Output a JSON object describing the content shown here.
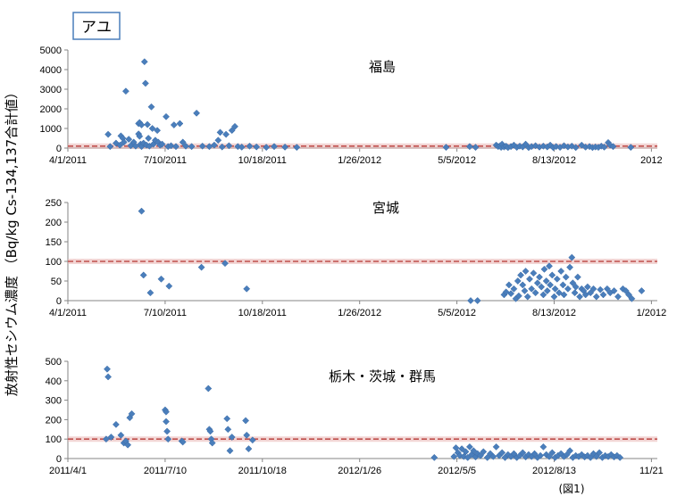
{
  "species_label": "アユ",
  "y_axis_label": "放射性セシウム濃度 （Bq/kg Cs-134,137合計値）",
  "figure_note": "(図1)",
  "colors": {
    "marker": "#4a7ebb",
    "limit_line": "#c0504d",
    "axis": "#868686"
  },
  "chart_data": [
    {
      "type": "scatter",
      "title": "福島",
      "ylim": [
        0,
        5000
      ],
      "yticks": [
        0,
        1000,
        2000,
        3000,
        4000,
        5000
      ],
      "xlim": [
        "2011-04-01",
        "2012-11-21"
      ],
      "xtick_labels": [
        "4/1/2011",
        "7/10/2011",
        "10/18/2011",
        "1/26/2012",
        "5/5/2012",
        "8/13/2012",
        "2012"
      ],
      "limit_value": 100,
      "points": [
        [
          "2011-05-12",
          700
        ],
        [
          "2011-05-14",
          80
        ],
        [
          "2011-05-20",
          250
        ],
        [
          "2011-05-24",
          150
        ],
        [
          "2011-05-25",
          620
        ],
        [
          "2011-05-27",
          500
        ],
        [
          "2011-05-28",
          300
        ],
        [
          "2011-05-30",
          2900
        ],
        [
          "2011-06-02",
          450
        ],
        [
          "2011-06-04",
          120
        ],
        [
          "2011-06-07",
          300
        ],
        [
          "2011-06-09",
          100
        ],
        [
          "2011-06-12",
          1250
        ],
        [
          "2011-06-12",
          720
        ],
        [
          "2011-06-13",
          1300
        ],
        [
          "2011-06-13",
          600
        ],
        [
          "2011-06-14",
          200
        ],
        [
          "2011-06-15",
          1180
        ],
        [
          "2011-06-15",
          80
        ],
        [
          "2011-06-17",
          250
        ],
        [
          "2011-06-18",
          4400
        ],
        [
          "2011-06-19",
          3300
        ],
        [
          "2011-06-20",
          150
        ],
        [
          "2011-06-21",
          1200
        ],
        [
          "2011-06-22",
          500
        ],
        [
          "2011-06-23",
          100
        ],
        [
          "2011-06-25",
          2100
        ],
        [
          "2011-06-26",
          1000
        ],
        [
          "2011-06-27",
          200
        ],
        [
          "2011-06-29",
          400
        ],
        [
          "2011-07-01",
          900
        ],
        [
          "2011-07-02",
          300
        ],
        [
          "2011-07-04",
          150
        ],
        [
          "2011-07-06",
          200
        ],
        [
          "2011-07-10",
          1600
        ],
        [
          "2011-07-12",
          80
        ],
        [
          "2011-07-15",
          120
        ],
        [
          "2011-07-18",
          1180
        ],
        [
          "2011-07-20",
          80
        ],
        [
          "2011-07-24",
          1250
        ],
        [
          "2011-07-27",
          300
        ],
        [
          "2011-07-30",
          100
        ],
        [
          "2011-08-05",
          80
        ],
        [
          "2011-08-10",
          1780
        ],
        [
          "2011-08-16",
          100
        ],
        [
          "2011-08-23",
          80
        ],
        [
          "2011-08-28",
          150
        ],
        [
          "2011-09-01",
          400
        ],
        [
          "2011-09-03",
          800
        ],
        [
          "2011-09-05",
          60
        ],
        [
          "2011-09-09",
          700
        ],
        [
          "2011-09-12",
          120
        ],
        [
          "2011-09-15",
          900
        ],
        [
          "2011-09-18",
          1100
        ],
        [
          "2011-09-21",
          80
        ],
        [
          "2011-09-25",
          50
        ],
        [
          "2011-10-03",
          100
        ],
        [
          "2011-10-10",
          60
        ],
        [
          "2011-10-20",
          40
        ],
        [
          "2011-10-28",
          80
        ],
        [
          "2011-11-08",
          50
        ],
        [
          "2011-11-20",
          40
        ],
        [
          "2012-04-20",
          40
        ],
        [
          "2012-05-14",
          80
        ],
        [
          "2012-05-20",
          40
        ],
        [
          "2012-06-10",
          150
        ],
        [
          "2012-06-12",
          80
        ],
        [
          "2012-06-14",
          120
        ],
        [
          "2012-06-15",
          40
        ],
        [
          "2012-06-16",
          200
        ],
        [
          "2012-06-18",
          60
        ],
        [
          "2012-06-20",
          100
        ],
        [
          "2012-06-22",
          30
        ],
        [
          "2012-06-25",
          80
        ],
        [
          "2012-06-28",
          150
        ],
        [
          "2012-07-01",
          40
        ],
        [
          "2012-07-04",
          100
        ],
        [
          "2012-07-07",
          60
        ],
        [
          "2012-07-10",
          200
        ],
        [
          "2012-07-13",
          30
        ],
        [
          "2012-07-16",
          80
        ],
        [
          "2012-07-20",
          120
        ],
        [
          "2012-07-24",
          50
        ],
        [
          "2012-07-28",
          100
        ],
        [
          "2012-08-01",
          60
        ],
        [
          "2012-08-04",
          150
        ],
        [
          "2012-08-07",
          30
        ],
        [
          "2012-08-10",
          80
        ],
        [
          "2012-08-14",
          40
        ],
        [
          "2012-08-18",
          120
        ],
        [
          "2012-08-22",
          60
        ],
        [
          "2012-08-26",
          100
        ],
        [
          "2012-08-30",
          30
        ],
        [
          "2012-09-05",
          150
        ],
        [
          "2012-09-09",
          50
        ],
        [
          "2012-09-13",
          80
        ],
        [
          "2012-09-16",
          30
        ],
        [
          "2012-09-19",
          60
        ],
        [
          "2012-09-22",
          40
        ],
        [
          "2012-09-25",
          100
        ],
        [
          "2012-09-28",
          50
        ],
        [
          "2012-10-02",
          280
        ],
        [
          "2012-10-04",
          150
        ],
        [
          "2012-10-07",
          80
        ],
        [
          "2012-10-25",
          40
        ]
      ]
    },
    {
      "type": "scatter",
      "title": "宮城",
      "ylim": [
        0,
        250
      ],
      "yticks": [
        0,
        50,
        100,
        150,
        200,
        250
      ],
      "xlim": [
        "2011-04-01",
        "2012-11-21"
      ],
      "xtick_labels": [
        "4/1/2011",
        "7/10/2011",
        "10/18/2011",
        "1/26/2012",
        "5/5/2012",
        "8/13/2012",
        "1/2012"
      ],
      "limit_value": 100,
      "points": [
        [
          "2011-06-15",
          228
        ],
        [
          "2011-06-17",
          65
        ],
        [
          "2011-06-24",
          20
        ],
        [
          "2011-07-05",
          55
        ],
        [
          "2011-07-13",
          37
        ],
        [
          "2011-08-15",
          85
        ],
        [
          "2011-09-08",
          95
        ],
        [
          "2011-09-30",
          30
        ],
        [
          "2012-05-15",
          0
        ],
        [
          "2012-05-22",
          0
        ],
        [
          "2012-06-18",
          15
        ],
        [
          "2012-06-20",
          22
        ],
        [
          "2012-06-23",
          40
        ],
        [
          "2012-06-25",
          18
        ],
        [
          "2012-06-28",
          30
        ],
        [
          "2012-06-30",
          5
        ],
        [
          "2012-07-02",
          50
        ],
        [
          "2012-07-03",
          12
        ],
        [
          "2012-07-05",
          65
        ],
        [
          "2012-07-07",
          40
        ],
        [
          "2012-07-09",
          25
        ],
        [
          "2012-07-10",
          75
        ],
        [
          "2012-07-12",
          10
        ],
        [
          "2012-07-14",
          55
        ],
        [
          "2012-07-16",
          30
        ],
        [
          "2012-07-18",
          70
        ],
        [
          "2012-07-20",
          20
        ],
        [
          "2012-07-22",
          45
        ],
        [
          "2012-07-24",
          60
        ],
        [
          "2012-07-26",
          35
        ],
        [
          "2012-07-28",
          15
        ],
        [
          "2012-07-29",
          80
        ],
        [
          "2012-07-31",
          50
        ],
        [
          "2012-08-01",
          25
        ],
        [
          "2012-08-03",
          88
        ],
        [
          "2012-08-04",
          40
        ],
        [
          "2012-08-06",
          65
        ],
        [
          "2012-08-08",
          10
        ],
        [
          "2012-08-09",
          30
        ],
        [
          "2012-08-11",
          55
        ],
        [
          "2012-08-13",
          20
        ],
        [
          "2012-08-15",
          75
        ],
        [
          "2012-08-17",
          40
        ],
        [
          "2012-08-18",
          15
        ],
        [
          "2012-08-20",
          60
        ],
        [
          "2012-08-22",
          30
        ],
        [
          "2012-08-24",
          85
        ],
        [
          "2012-08-26",
          110
        ],
        [
          "2012-08-27",
          45
        ],
        [
          "2012-08-29",
          20
        ],
        [
          "2012-08-30",
          35
        ],
        [
          "2012-09-01",
          60
        ],
        [
          "2012-09-03",
          10
        ],
        [
          "2012-09-05",
          30
        ],
        [
          "2012-09-07",
          25
        ],
        [
          "2012-09-09",
          15
        ],
        [
          "2012-09-11",
          35
        ],
        [
          "2012-09-14",
          20
        ],
        [
          "2012-09-17",
          30
        ],
        [
          "2012-09-20",
          10
        ],
        [
          "2012-09-24",
          28
        ],
        [
          "2012-09-27",
          15
        ],
        [
          "2012-10-01",
          30
        ],
        [
          "2012-10-04",
          20
        ],
        [
          "2012-10-08",
          25
        ],
        [
          "2012-10-12",
          10
        ],
        [
          "2012-10-17",
          30
        ],
        [
          "2012-10-20",
          25
        ],
        [
          "2012-10-23",
          15
        ],
        [
          "2012-10-26",
          5
        ],
        [
          "2012-11-05",
          25
        ]
      ]
    },
    {
      "type": "scatter",
      "title": "栃木・茨城・群馬",
      "ylim": [
        0,
        500
      ],
      "yticks": [
        0,
        100,
        200,
        300,
        400,
        500
      ],
      "xlim": [
        "2011-04-01",
        "2012-11-21"
      ],
      "xtick_labels": [
        "2011/4/1",
        "2011/7/10",
        "2011/10/18",
        "2012/1/26",
        "2012/5/5",
        "2012/8/13",
        "11/21"
      ],
      "limit_value": 100,
      "points": [
        [
          "2011-05-10",
          100
        ],
        [
          "2011-05-11",
          460
        ],
        [
          "2011-05-12",
          420
        ],
        [
          "2011-05-15",
          110
        ],
        [
          "2011-05-20",
          175
        ],
        [
          "2011-05-25",
          120
        ],
        [
          "2011-05-28",
          80
        ],
        [
          "2011-05-30",
          90
        ],
        [
          "2011-06-01",
          70
        ],
        [
          "2011-06-03",
          210
        ],
        [
          "2011-06-05",
          230
        ],
        [
          "2011-07-09",
          250
        ],
        [
          "2011-07-10",
          240
        ],
        [
          "2011-07-10",
          190
        ],
        [
          "2011-07-11",
          140
        ],
        [
          "2011-07-12",
          100
        ],
        [
          "2011-07-26",
          90
        ],
        [
          "2011-07-27",
          85
        ],
        [
          "2011-08-22",
          360
        ],
        [
          "2011-08-23",
          150
        ],
        [
          "2011-08-24",
          140
        ],
        [
          "2011-08-25",
          100
        ],
        [
          "2011-08-26",
          80
        ],
        [
          "2011-09-10",
          205
        ],
        [
          "2011-09-11",
          150
        ],
        [
          "2011-09-13",
          40
        ],
        [
          "2011-09-15",
          110
        ],
        [
          "2011-09-29",
          195
        ],
        [
          "2011-09-30",
          120
        ],
        [
          "2011-10-02",
          50
        ],
        [
          "2011-10-06",
          95
        ],
        [
          "2012-04-08",
          5
        ],
        [
          "2012-04-28",
          10
        ],
        [
          "2012-04-30",
          55
        ],
        [
          "2012-05-02",
          30
        ],
        [
          "2012-05-04",
          15
        ],
        [
          "2012-05-06",
          50
        ],
        [
          "2012-05-08",
          10
        ],
        [
          "2012-05-10",
          35
        ],
        [
          "2012-05-12",
          5
        ],
        [
          "2012-05-14",
          60
        ],
        [
          "2012-05-16",
          20
        ],
        [
          "2012-05-18",
          40
        ],
        [
          "2012-05-20",
          8
        ],
        [
          "2012-05-22",
          25
        ],
        [
          "2012-05-25",
          15
        ],
        [
          "2012-05-28",
          35
        ],
        [
          "2012-06-01",
          5
        ],
        [
          "2012-06-04",
          25
        ],
        [
          "2012-06-07",
          10
        ],
        [
          "2012-06-10",
          60
        ],
        [
          "2012-06-13",
          15
        ],
        [
          "2012-06-16",
          30
        ],
        [
          "2012-06-19",
          5
        ],
        [
          "2012-06-22",
          20
        ],
        [
          "2012-06-25",
          10
        ],
        [
          "2012-06-28",
          25
        ],
        [
          "2012-07-01",
          5
        ],
        [
          "2012-07-04",
          15
        ],
        [
          "2012-07-07",
          30
        ],
        [
          "2012-07-10",
          8
        ],
        [
          "2012-07-13",
          20
        ],
        [
          "2012-07-16",
          10
        ],
        [
          "2012-07-19",
          25
        ],
        [
          "2012-07-22",
          5
        ],
        [
          "2012-07-25",
          15
        ],
        [
          "2012-07-28",
          60
        ],
        [
          "2012-07-31",
          20
        ],
        [
          "2012-08-03",
          10
        ],
        [
          "2012-08-06",
          30
        ],
        [
          "2012-08-09",
          5
        ],
        [
          "2012-08-12",
          15
        ],
        [
          "2012-08-15",
          25
        ],
        [
          "2012-08-18",
          10
        ],
        [
          "2012-08-21",
          20
        ],
        [
          "2012-08-24",
          40
        ],
        [
          "2012-08-27",
          5
        ],
        [
          "2012-08-30",
          15
        ],
        [
          "2012-09-02",
          10
        ],
        [
          "2012-09-05",
          20
        ],
        [
          "2012-09-08",
          8
        ],
        [
          "2012-09-11",
          15
        ],
        [
          "2012-09-14",
          5
        ],
        [
          "2012-09-17",
          25
        ],
        [
          "2012-09-20",
          10
        ],
        [
          "2012-09-23",
          30
        ],
        [
          "2012-09-26",
          5
        ],
        [
          "2012-09-29",
          15
        ],
        [
          "2012-10-02",
          10
        ],
        [
          "2012-10-05",
          20
        ],
        [
          "2012-10-08",
          8
        ],
        [
          "2012-10-11",
          15
        ],
        [
          "2012-10-14",
          5
        ]
      ]
    }
  ]
}
